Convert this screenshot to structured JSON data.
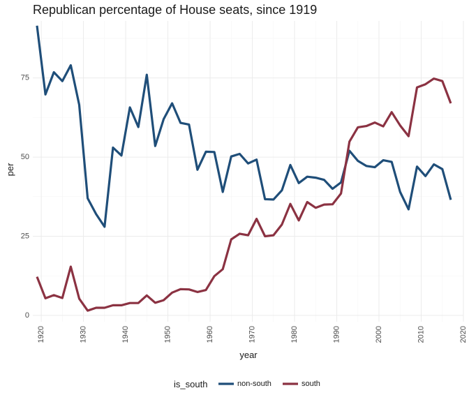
{
  "chart_data": {
    "type": "line",
    "title": "Republican percentage of House seats, since 1919",
    "xlabel": "year",
    "ylabel": "per",
    "xlim": [
      1918,
      2020
    ],
    "ylim": [
      -2,
      93
    ],
    "x_ticks": [
      1920,
      1930,
      1940,
      1950,
      1960,
      1970,
      1980,
      1990,
      2000,
      2010,
      2020
    ],
    "x_tick_labels": [
      "1920",
      "1930",
      "1940",
      "1950",
      "1960",
      "1970",
      "1980",
      "1990",
      "2000",
      "2010",
      "2020"
    ],
    "y_ticks": [
      0,
      25,
      50,
      75
    ],
    "y_tick_labels": [
      "0",
      "25",
      "50",
      "75"
    ],
    "grid": true,
    "legend": {
      "title": "is_south",
      "position": "bottom"
    },
    "x": [
      1919,
      1921,
      1923,
      1925,
      1927,
      1929,
      1931,
      1933,
      1935,
      1937,
      1939,
      1941,
      1943,
      1945,
      1947,
      1949,
      1951,
      1953,
      1955,
      1957,
      1959,
      1961,
      1963,
      1965,
      1967,
      1969,
      1971,
      1973,
      1975,
      1977,
      1979,
      1981,
      1983,
      1985,
      1987,
      1989,
      1991,
      1993,
      1995,
      1997,
      1999,
      2001,
      2003,
      2005,
      2007,
      2009,
      2011,
      2013,
      2015,
      2017
    ],
    "series": [
      {
        "name": "non-south",
        "color": "#1f4e79",
        "values": [
          91.5,
          69.8,
          76.8,
          74.0,
          79.0,
          66.5,
          37.0,
          32.0,
          28.0,
          53.0,
          50.5,
          65.7,
          59.5,
          76.0,
          53.5,
          62.0,
          67.0,
          60.8,
          60.3,
          46.0,
          51.7,
          51.6,
          39.0,
          50.2,
          51.0,
          48.0,
          49.2,
          36.7,
          36.6,
          39.5,
          47.5,
          41.8,
          43.8,
          43.5,
          42.8,
          40.0,
          42.0,
          52.0,
          48.8,
          47.2,
          46.8,
          49.0,
          48.5,
          39.0,
          33.5,
          47.0,
          44.0,
          47.7,
          46.2,
          36.5
        ]
      },
      {
        "name": "south",
        "color": "#8b3242",
        "values": [
          12.2,
          5.4,
          6.4,
          5.5,
          15.4,
          5.3,
          1.5,
          2.4,
          2.4,
          3.2,
          3.2,
          3.9,
          3.9,
          6.3,
          4.0,
          4.8,
          7.2,
          8.3,
          8.2,
          7.4,
          8.0,
          12.4,
          14.6,
          24.0,
          25.8,
          25.3,
          30.5,
          25.0,
          25.3,
          28.7,
          35.2,
          30.0,
          35.8,
          34.0,
          35.0,
          35.1,
          38.5,
          54.9,
          59.4,
          59.8,
          60.9,
          59.7,
          64.2,
          60.0,
          56.6,
          72.0,
          73.0,
          74.8,
          74.0,
          67.0
        ]
      }
    ]
  }
}
